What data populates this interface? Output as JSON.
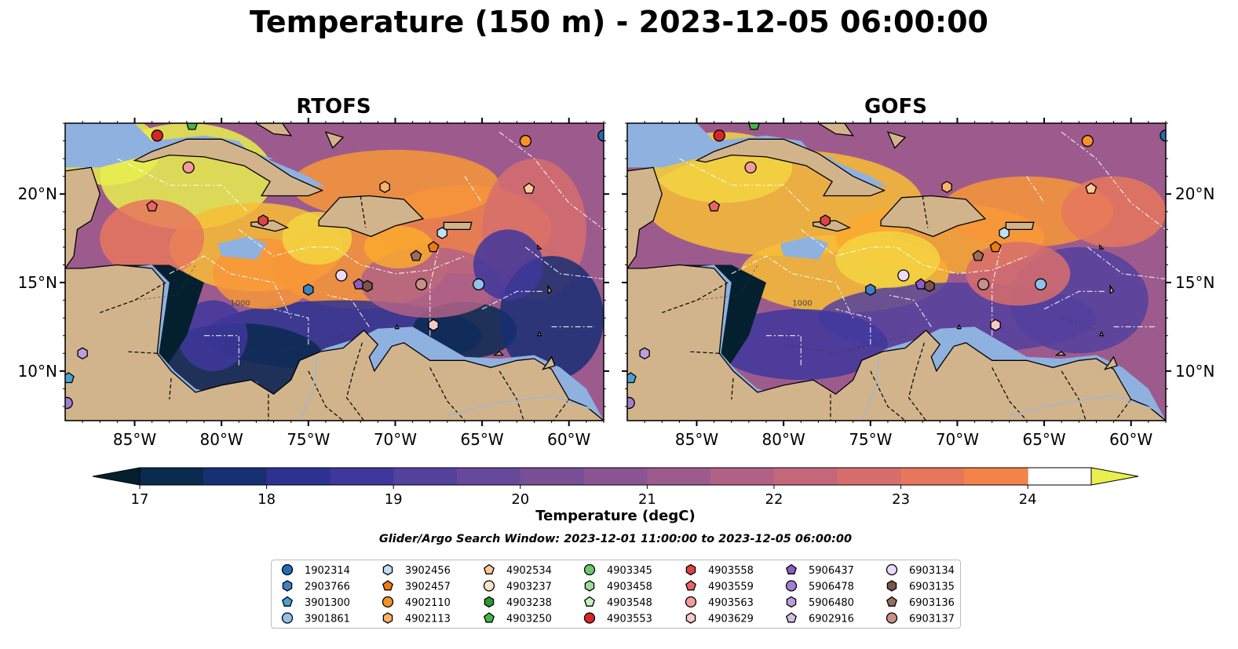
{
  "title": "Temperature (150 m) - 2023-12-05 06:00:00",
  "panels": [
    {
      "title": "RTOFS"
    },
    {
      "title": "GOFS"
    }
  ],
  "map": {
    "lon_range": [
      -89,
      -58
    ],
    "lat_range": [
      7.2,
      24
    ],
    "lon_ticks": [
      "85°W",
      "80°W",
      "75°W",
      "70°W",
      "65°W",
      "60°W"
    ],
    "lat_ticks": [
      "20°N",
      "15°N",
      "10°N"
    ],
    "land_color": "#d2b48c",
    "shelf_color": "#8fb1df",
    "contour_labels": [
      "1000",
      "100"
    ]
  },
  "colorbar": {
    "label": "Temperature (degC)",
    "ticks": [
      "17",
      "18",
      "19",
      "20",
      "21",
      "22",
      "23",
      "24"
    ],
    "min": 17,
    "max": 24.5,
    "step": 0.5,
    "extend": "both",
    "colormap": "thermal",
    "colors": [
      "#04202f",
      "#0a2a50",
      "#172f73",
      "#2d3291",
      "#3f379c",
      "#54419e",
      "#66499a",
      "#784f96",
      "#8a5592",
      "#9d5b8d",
      "#b16186",
      "#c5677b",
      "#d76e6d",
      "#e6775c",
      "#f28449",
      "#f89638",
      "#faa92f",
      "#f8bd35",
      "#f3d541",
      "#e8ef4f"
    ]
  },
  "search_window": "Glider/Argo Search Window: 2023-12-01 11:00:00 to 2023-12-05 06:00:00",
  "legend": [
    {
      "id": "1902314",
      "marker": "circle",
      "color": "#1f6fb4"
    },
    {
      "id": "2903766",
      "marker": "hexagon",
      "color": "#3c82c4"
    },
    {
      "id": "3901300",
      "marker": "pentagon",
      "color": "#4aa0d8"
    },
    {
      "id": "3901861",
      "marker": "circle",
      "color": "#8fc3ea"
    },
    {
      "id": "3902456",
      "marker": "hexagon",
      "color": "#bfe0f6"
    },
    {
      "id": "3902457",
      "marker": "pentagon",
      "color": "#f07a12"
    },
    {
      "id": "4902110",
      "marker": "circle",
      "color": "#f6922a"
    },
    {
      "id": "4902113",
      "marker": "hexagon",
      "color": "#f9b266"
    },
    {
      "id": "4902534",
      "marker": "pentagon",
      "color": "#fbc999"
    },
    {
      "id": "4903237",
      "marker": "circle",
      "color": "#fde3c8"
    },
    {
      "id": "4903238",
      "marker": "hexagon",
      "color": "#2a9a2a"
    },
    {
      "id": "4903250",
      "marker": "pentagon",
      "color": "#46b446"
    },
    {
      "id": "4903345",
      "marker": "circle",
      "color": "#6cc86a"
    },
    {
      "id": "4903458",
      "marker": "hexagon",
      "color": "#9edd95"
    },
    {
      "id": "4903548",
      "marker": "pentagon",
      "color": "#c8efbd"
    },
    {
      "id": "4903553",
      "marker": "circle",
      "color": "#d62728"
    },
    {
      "id": "4903558",
      "marker": "hexagon",
      "color": "#dc4444"
    },
    {
      "id": "4903559",
      "marker": "pentagon",
      "color": "#ea6464"
    },
    {
      "id": "4903563",
      "marker": "circle",
      "color": "#f59a9a"
    },
    {
      "id": "4903629",
      "marker": "hexagon",
      "color": "#fbc8c8"
    },
    {
      "id": "5906437",
      "marker": "pentagon",
      "color": "#8e5cc2"
    },
    {
      "id": "5906478",
      "marker": "circle",
      "color": "#a47fd0"
    },
    {
      "id": "5906480",
      "marker": "hexagon",
      "color": "#bb9fdd"
    },
    {
      "id": "6902916",
      "marker": "pentagon",
      "color": "#d2bfeb"
    },
    {
      "id": "6903134",
      "marker": "circle",
      "color": "#ecdaf6"
    },
    {
      "id": "6903135",
      "marker": "hexagon",
      "color": "#7c5249"
    },
    {
      "id": "6903136",
      "marker": "pentagon",
      "color": "#9c6c60"
    },
    {
      "id": "6903137",
      "marker": "circle",
      "color": "#c7918a"
    }
  ],
  "floats": [
    {
      "id": "4903553",
      "lon": -83.7,
      "lat": 23.3
    },
    {
      "id": "4903250",
      "lon": -81.7,
      "lat": 23.9
    },
    {
      "id": "4903563",
      "lon": -81.9,
      "lat": 21.5
    },
    {
      "id": "4903559",
      "lon": -84.0,
      "lat": 19.3
    },
    {
      "id": "4903558",
      "lon": -77.6,
      "lat": 18.5
    },
    {
      "id": "4902113",
      "lon": -70.6,
      "lat": 20.4
    },
    {
      "id": "4902110",
      "lon": -62.5,
      "lat": 23.0
    },
    {
      "id": "4902534",
      "lon": -62.3,
      "lat": 20.3
    },
    {
      "id": "1902314",
      "lon": -58.0,
      "lat": 23.3
    },
    {
      "id": "3902456",
      "lon": -67.3,
      "lat": 17.8
    },
    {
      "id": "3902457",
      "lon": -67.8,
      "lat": 17.0
    },
    {
      "id": "6903136",
      "lon": -68.8,
      "lat": 16.5
    },
    {
      "id": "6903134",
      "lon": -73.1,
      "lat": 15.4
    },
    {
      "id": "5906437",
      "lon": -72.1,
      "lat": 14.9
    },
    {
      "id": "6903135",
      "lon": -71.6,
      "lat": 14.8
    },
    {
      "id": "6903137",
      "lon": -68.5,
      "lat": 14.9
    },
    {
      "id": "3901861",
      "lon": -65.2,
      "lat": 14.9
    },
    {
      "id": "2903766",
      "lon": -75.0,
      "lat": 14.6
    },
    {
      "id": "4903629",
      "lon": -67.8,
      "lat": 12.6
    },
    {
      "id": "5906478",
      "lon": -88.9,
      "lat": 8.2
    },
    {
      "id": "5906480",
      "lon": -88.0,
      "lat": 11.0
    },
    {
      "id": "3901300",
      "lon": -88.8,
      "lat": 9.6
    }
  ]
}
